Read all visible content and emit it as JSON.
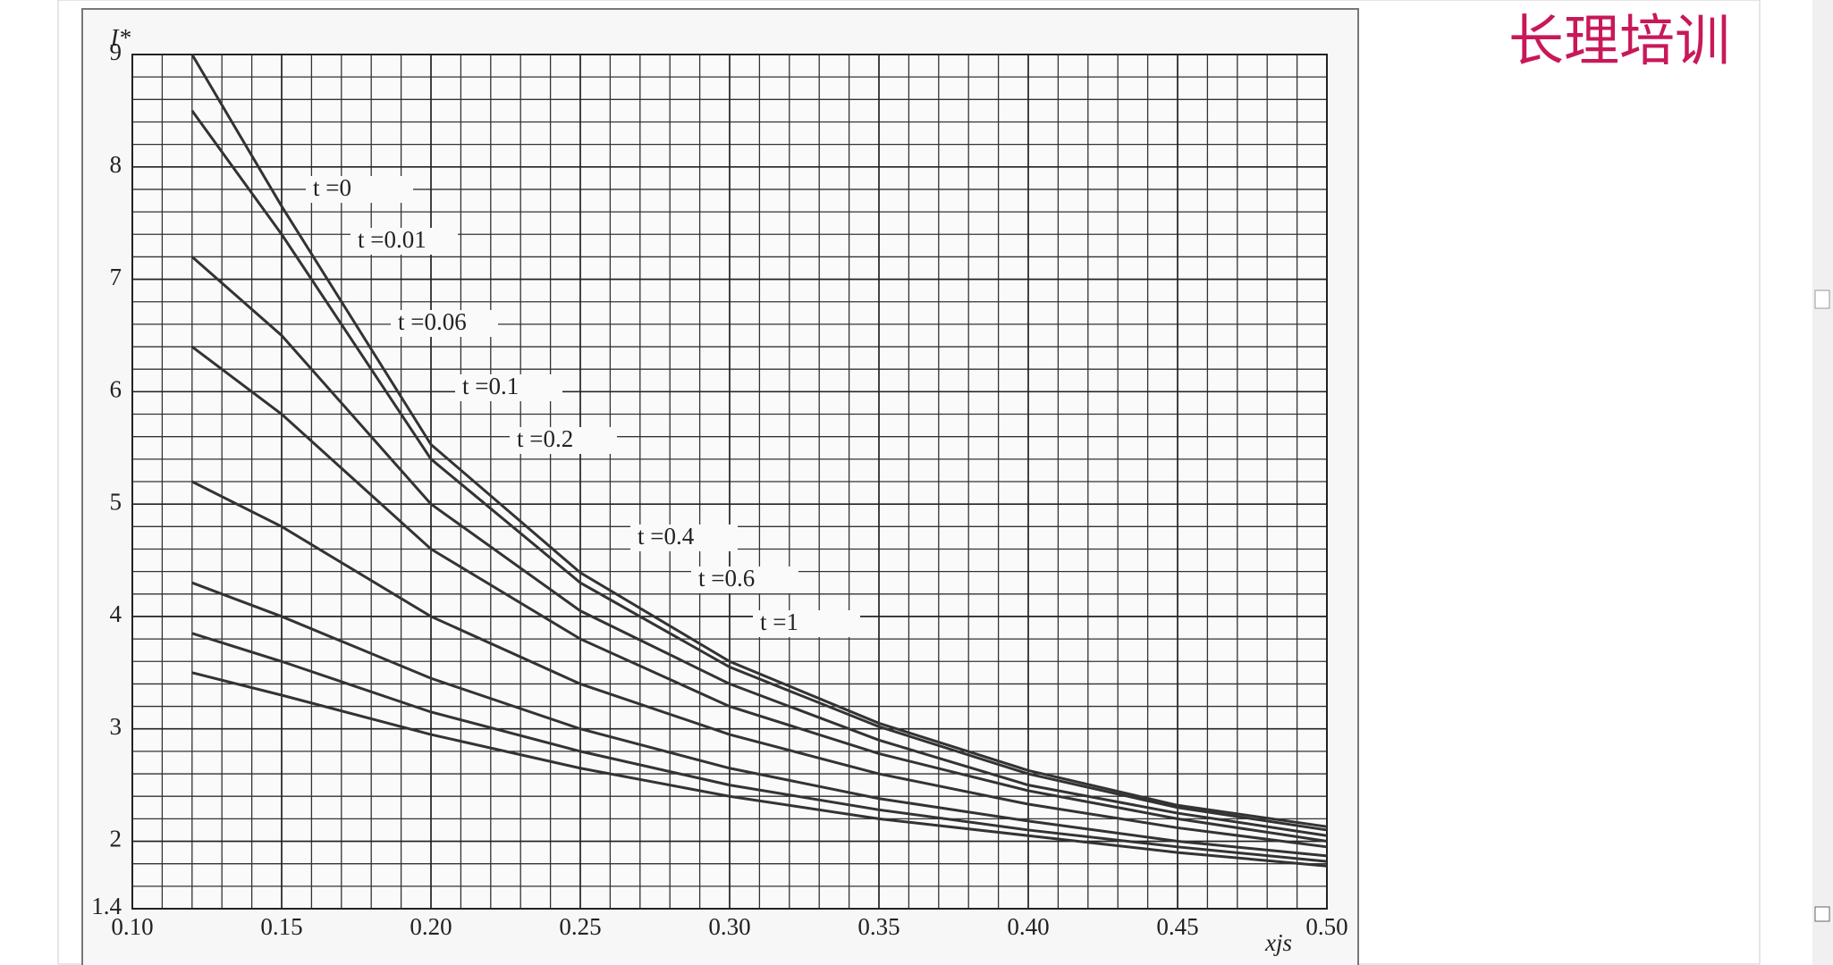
{
  "watermark": "长理培训",
  "chart_data": {
    "type": "line",
    "ylabel": "I*",
    "xlabel": "xjs",
    "x": [
      0.12,
      0.15,
      0.2,
      0.25,
      0.3,
      0.35,
      0.4,
      0.45,
      0.5
    ],
    "series": [
      {
        "name": "t =0",
        "color": "#333333",
        "values": [
          9.0,
          7.65,
          5.53,
          4.39,
          3.6,
          3.05,
          2.63,
          2.32,
          2.13
        ]
      },
      {
        "name": "t =0.01",
        "color": "#333333",
        "values": [
          8.5,
          7.4,
          5.4,
          4.3,
          3.55,
          3.02,
          2.6,
          2.3,
          2.1
        ]
      },
      {
        "name": "t =0.06",
        "color": "#333333",
        "values": [
          7.2,
          6.5,
          5.0,
          4.05,
          3.4,
          2.9,
          2.5,
          2.25,
          2.05
        ]
      },
      {
        "name": "t =0.1",
        "color": "#333333",
        "values": [
          6.4,
          5.8,
          4.6,
          3.8,
          3.2,
          2.78,
          2.45,
          2.2,
          2.0
        ]
      },
      {
        "name": "t =0.2",
        "color": "#333333",
        "values": [
          5.2,
          4.8,
          4.0,
          3.4,
          2.95,
          2.6,
          2.33,
          2.12,
          1.95
        ]
      },
      {
        "name": "t =0.4",
        "color": "#333333",
        "values": [
          4.3,
          4.0,
          3.45,
          3.0,
          2.65,
          2.38,
          2.18,
          2.0,
          1.87
        ]
      },
      {
        "name": "t =0.6",
        "color": "#333333",
        "values": [
          3.85,
          3.6,
          3.15,
          2.8,
          2.5,
          2.28,
          2.1,
          1.95,
          1.82
        ]
      },
      {
        "name": "t =1",
        "color": "#333333",
        "values": [
          3.5,
          3.3,
          2.95,
          2.65,
          2.4,
          2.2,
          2.05,
          1.9,
          1.78
        ]
      }
    ],
    "xlim": [
      0.1,
      0.5
    ],
    "ylim": [
      1.4,
      9
    ],
    "xticks": [
      {
        "value": 0.1,
        "label": "0.10"
      },
      {
        "value": 0.15,
        "label": "0.15"
      },
      {
        "value": 0.2,
        "label": "0.20"
      },
      {
        "value": 0.25,
        "label": "0.25"
      },
      {
        "value": 0.3,
        "label": "0.30"
      },
      {
        "value": 0.35,
        "label": "0.35"
      },
      {
        "value": 0.4,
        "label": "0.40"
      },
      {
        "value": 0.45,
        "label": "0.45"
      },
      {
        "value": 0.5,
        "label": "0.50"
      }
    ],
    "yticks": [
      1.4,
      2,
      3,
      4,
      5,
      6,
      7,
      8,
      9
    ],
    "grid": true,
    "minor_grid": {
      "x": 0.01,
      "y": 0.2
    }
  }
}
